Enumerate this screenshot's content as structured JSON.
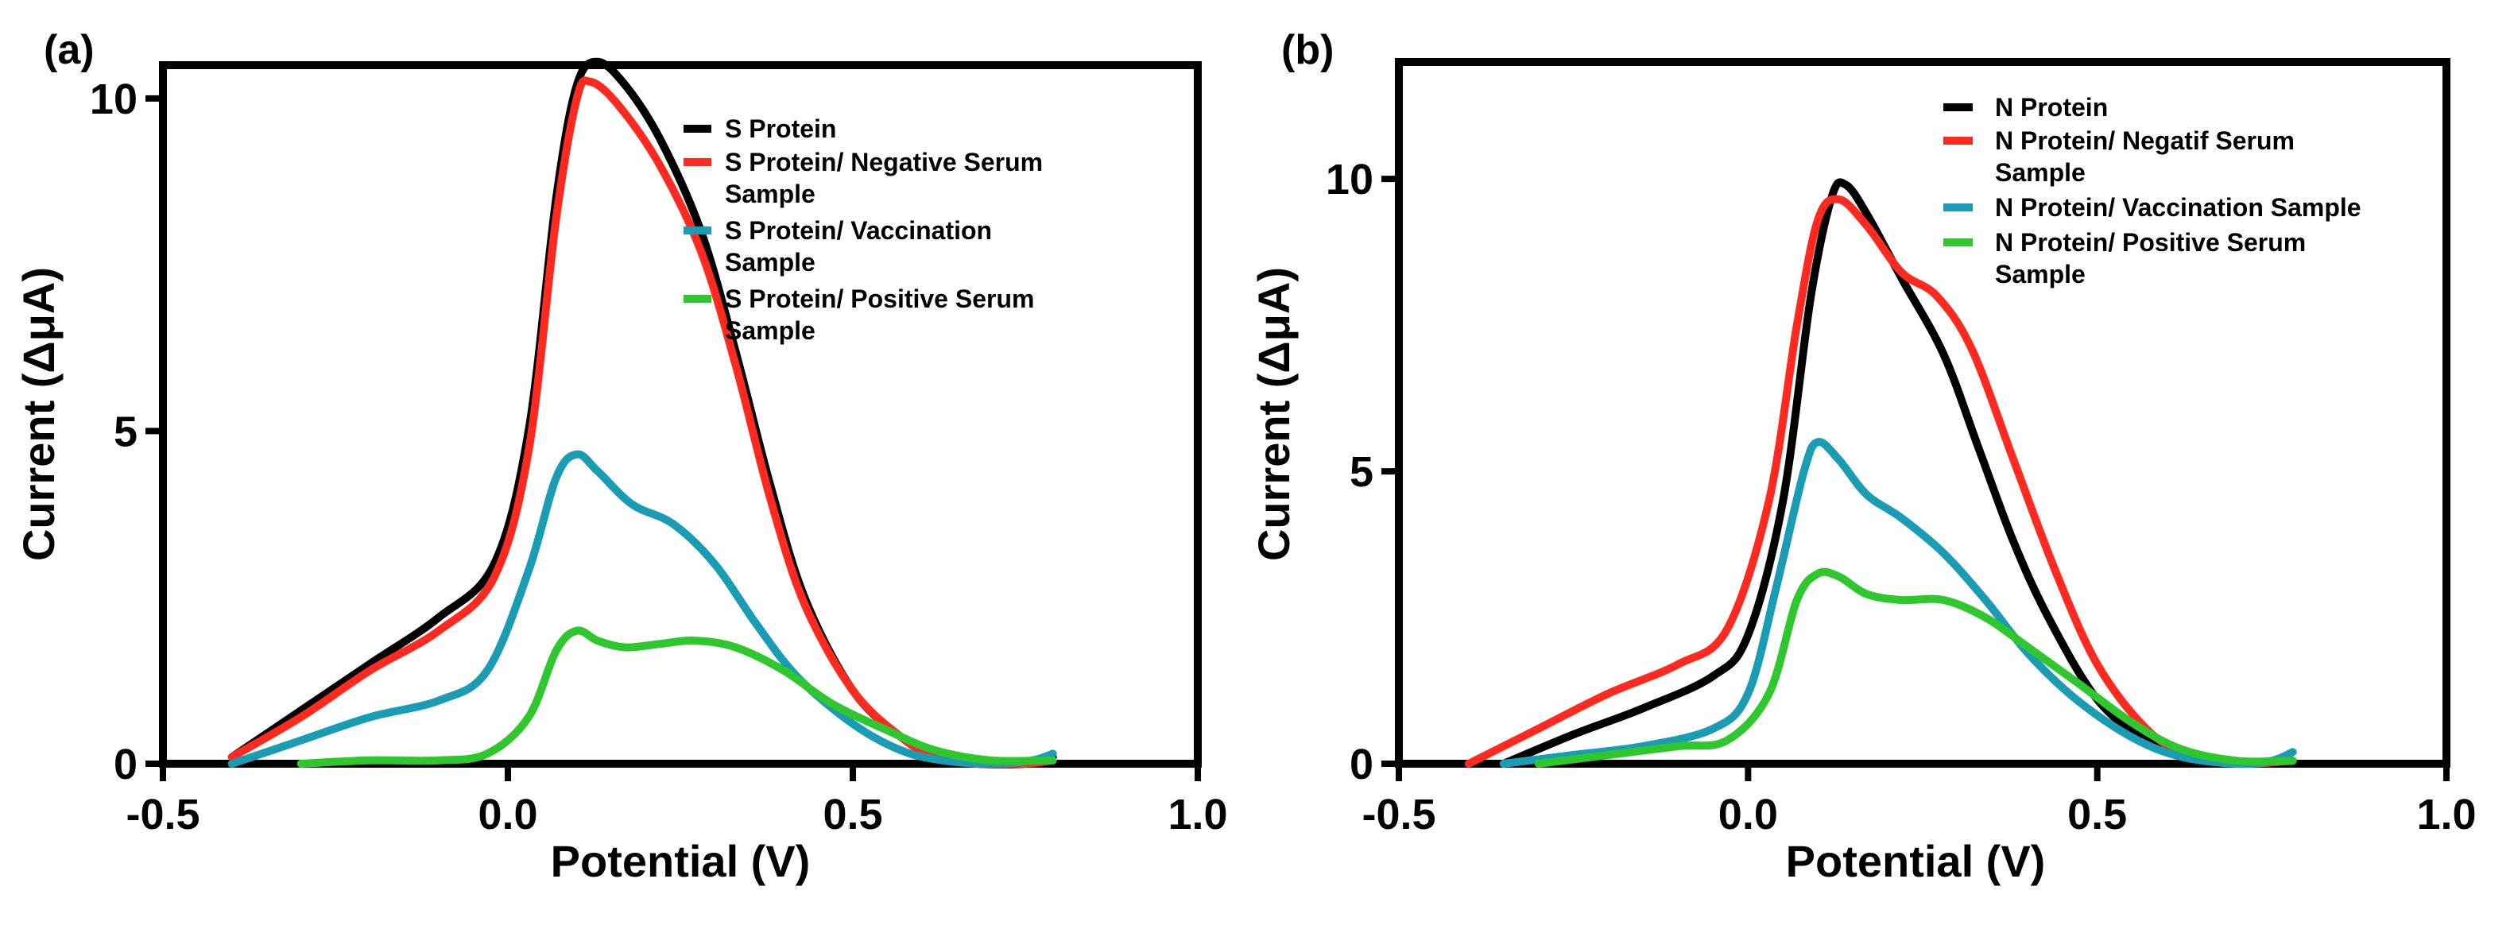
{
  "chart_data": [
    {
      "type": "line",
      "panel_label": "(a)",
      "xlabel": "Potential (V)",
      "ylabel": "Current (ΔμA)",
      "xlim": [
        -0.5,
        1.0
      ],
      "ylim": [
        0,
        10.5
      ],
      "xticks": [
        -0.5,
        0.0,
        0.5,
        1.0
      ],
      "xtick_labels": [
        "-0.5",
        "0.0",
        "0.5",
        "1.0"
      ],
      "yticks": [
        0,
        5,
        10
      ],
      "ytick_labels": [
        "0",
        "5",
        "10"
      ],
      "legend_position": "top-right",
      "series": [
        {
          "name": "S Protein",
          "legend": [
            "S Protein"
          ],
          "color": "#000000",
          "points": [
            [
              -0.4,
              0.1
            ],
            [
              -0.3,
              0.8
            ],
            [
              -0.2,
              1.5
            ],
            [
              -0.1,
              2.2
            ],
            [
              -0.02,
              3.0
            ],
            [
              0.03,
              5.0
            ],
            [
              0.07,
              8.5
            ],
            [
              0.1,
              10.2
            ],
            [
              0.13,
              10.55
            ],
            [
              0.17,
              10.2
            ],
            [
              0.22,
              9.4
            ],
            [
              0.28,
              8.0
            ],
            [
              0.33,
              6.2
            ],
            [
              0.38,
              4.2
            ],
            [
              0.43,
              2.5
            ],
            [
              0.5,
              1.1
            ],
            [
              0.57,
              0.4
            ],
            [
              0.62,
              0.1
            ],
            [
              0.68,
              0.0
            ],
            [
              0.75,
              0.0
            ],
            [
              0.79,
              0.1
            ]
          ]
        },
        {
          "name": "S Protein/ Negative Serum Sample",
          "legend": [
            "S Protein/ Negative Serum",
            "Sample"
          ],
          "color": "#ff2a1f",
          "points": [
            [
              -0.4,
              0.1
            ],
            [
              -0.3,
              0.7
            ],
            [
              -0.2,
              1.4
            ],
            [
              -0.1,
              2.0
            ],
            [
              -0.02,
              2.8
            ],
            [
              0.03,
              4.7
            ],
            [
              0.07,
              8.2
            ],
            [
              0.1,
              10.0
            ],
            [
              0.12,
              10.25
            ],
            [
              0.16,
              9.9
            ],
            [
              0.22,
              9.0
            ],
            [
              0.28,
              7.7
            ],
            [
              0.33,
              6.0
            ],
            [
              0.38,
              4.0
            ],
            [
              0.43,
              2.4
            ],
            [
              0.5,
              1.1
            ],
            [
              0.57,
              0.4
            ],
            [
              0.62,
              0.1
            ],
            [
              0.68,
              0.0
            ],
            [
              0.75,
              0.0
            ],
            [
              0.79,
              0.05
            ]
          ]
        },
        {
          "name": "S Protein/ Vaccination Sample",
          "legend": [
            "S Protein/ Vaccination",
            "Sample"
          ],
          "color": "#1b9cb5",
          "points": [
            [
              -0.4,
              0.0
            ],
            [
              -0.3,
              0.35
            ],
            [
              -0.2,
              0.7
            ],
            [
              -0.1,
              0.95
            ],
            [
              -0.03,
              1.4
            ],
            [
              0.03,
              2.9
            ],
            [
              0.07,
              4.3
            ],
            [
              0.1,
              4.65
            ],
            [
              0.13,
              4.4
            ],
            [
              0.18,
              3.9
            ],
            [
              0.24,
              3.6
            ],
            [
              0.3,
              3.0
            ],
            [
              0.36,
              2.1
            ],
            [
              0.42,
              1.3
            ],
            [
              0.5,
              0.6
            ],
            [
              0.57,
              0.2
            ],
            [
              0.63,
              0.05
            ],
            [
              0.7,
              0.0
            ],
            [
              0.76,
              0.05
            ],
            [
              0.79,
              0.15
            ]
          ]
        },
        {
          "name": "S Protein/ Positive Serum Sample",
          "legend": [
            "S Protein/ Positive Serum",
            "Sample"
          ],
          "color": "#2ec72e",
          "points": [
            [
              -0.3,
              0.0
            ],
            [
              -0.2,
              0.05
            ],
            [
              -0.1,
              0.05
            ],
            [
              -0.03,
              0.15
            ],
            [
              0.03,
              0.7
            ],
            [
              0.07,
              1.7
            ],
            [
              0.1,
              2.0
            ],
            [
              0.13,
              1.85
            ],
            [
              0.17,
              1.75
            ],
            [
              0.22,
              1.8
            ],
            [
              0.27,
              1.85
            ],
            [
              0.33,
              1.75
            ],
            [
              0.4,
              1.4
            ],
            [
              0.47,
              0.9
            ],
            [
              0.55,
              0.5
            ],
            [
              0.62,
              0.2
            ],
            [
              0.7,
              0.05
            ],
            [
              0.79,
              0.05
            ]
          ]
        }
      ]
    },
    {
      "type": "line",
      "panel_label": "(b)",
      "xlabel": "Potential (V)",
      "ylabel": "Current (ΔμA)",
      "xlim": [
        -0.5,
        1.0
      ],
      "ylim": [
        0,
        12
      ],
      "xticks": [
        -0.5,
        0.0,
        0.5,
        1.0
      ],
      "xtick_labels": [
        "-0.5",
        "0.0",
        "0.5",
        "1.0"
      ],
      "yticks": [
        0,
        5,
        10
      ],
      "ytick_labels": [
        "0",
        "5",
        "10"
      ],
      "legend_position": "top-right",
      "series": [
        {
          "name": "N Protein",
          "legend": [
            "N Protein"
          ],
          "color": "#000000",
          "points": [
            [
              -0.35,
              0.0
            ],
            [
              -0.25,
              0.5
            ],
            [
              -0.15,
              0.95
            ],
            [
              -0.05,
              1.5
            ],
            [
              0.0,
              2.2
            ],
            [
              0.05,
              4.5
            ],
            [
              0.09,
              8.0
            ],
            [
              0.12,
              9.7
            ],
            [
              0.14,
              9.9
            ],
            [
              0.17,
              9.4
            ],
            [
              0.22,
              8.3
            ],
            [
              0.28,
              7.0
            ],
            [
              0.33,
              5.4
            ],
            [
              0.38,
              3.8
            ],
            [
              0.43,
              2.5
            ],
            [
              0.5,
              1.1
            ],
            [
              0.57,
              0.4
            ],
            [
              0.63,
              0.1
            ],
            [
              0.7,
              0.0
            ],
            [
              0.78,
              0.05
            ]
          ]
        },
        {
          "name": "N Protein/ Negatif Serum Sample",
          "legend": [
            "N Protein/  Negatif Serum",
            "Sample"
          ],
          "color": "#ff2a1f",
          "points": [
            [
              -0.4,
              0.0
            ],
            [
              -0.3,
              0.6
            ],
            [
              -0.2,
              1.2
            ],
            [
              -0.1,
              1.7
            ],
            [
              -0.03,
              2.3
            ],
            [
              0.03,
              4.5
            ],
            [
              0.07,
              7.5
            ],
            [
              0.1,
              9.3
            ],
            [
              0.13,
              9.65
            ],
            [
              0.17,
              9.2
            ],
            [
              0.22,
              8.4
            ],
            [
              0.27,
              8.0
            ],
            [
              0.32,
              7.1
            ],
            [
              0.38,
              5.2
            ],
            [
              0.44,
              3.3
            ],
            [
              0.5,
              1.7
            ],
            [
              0.57,
              0.6
            ],
            [
              0.63,
              0.15
            ],
            [
              0.7,
              0.0
            ],
            [
              0.78,
              0.05
            ]
          ]
        },
        {
          "name": "N Protein/ Vaccination Sample",
          "legend": [
            "N Protein/ Vaccination Sample"
          ],
          "color": "#1b9cb5",
          "points": [
            [
              -0.35,
              0.0
            ],
            [
              -0.25,
              0.15
            ],
            [
              -0.15,
              0.3
            ],
            [
              -0.05,
              0.6
            ],
            [
              0.0,
              1.2
            ],
            [
              0.04,
              3.0
            ],
            [
              0.08,
              5.0
            ],
            [
              0.1,
              5.5
            ],
            [
              0.13,
              5.2
            ],
            [
              0.17,
              4.6
            ],
            [
              0.22,
              4.2
            ],
            [
              0.28,
              3.6
            ],
            [
              0.34,
              2.8
            ],
            [
              0.4,
              1.9
            ],
            [
              0.47,
              1.1
            ],
            [
              0.55,
              0.45
            ],
            [
              0.62,
              0.12
            ],
            [
              0.7,
              0.0
            ],
            [
              0.75,
              0.05
            ],
            [
              0.78,
              0.2
            ]
          ]
        },
        {
          "name": "N Protein/ Positive Serum Sample",
          "legend": [
            "N Protein/ Positive Serum",
            "Sample"
          ],
          "color": "#2ec72e",
          "points": [
            [
              -0.3,
              0.0
            ],
            [
              -0.2,
              0.15
            ],
            [
              -0.1,
              0.3
            ],
            [
              -0.03,
              0.4
            ],
            [
              0.03,
              1.2
            ],
            [
              0.07,
              2.8
            ],
            [
              0.1,
              3.25
            ],
            [
              0.13,
              3.2
            ],
            [
              0.17,
              2.9
            ],
            [
              0.22,
              2.8
            ],
            [
              0.28,
              2.8
            ],
            [
              0.34,
              2.5
            ],
            [
              0.4,
              2.0
            ],
            [
              0.47,
              1.4
            ],
            [
              0.55,
              0.7
            ],
            [
              0.62,
              0.25
            ],
            [
              0.7,
              0.05
            ],
            [
              0.78,
              0.05
            ]
          ]
        }
      ]
    }
  ]
}
